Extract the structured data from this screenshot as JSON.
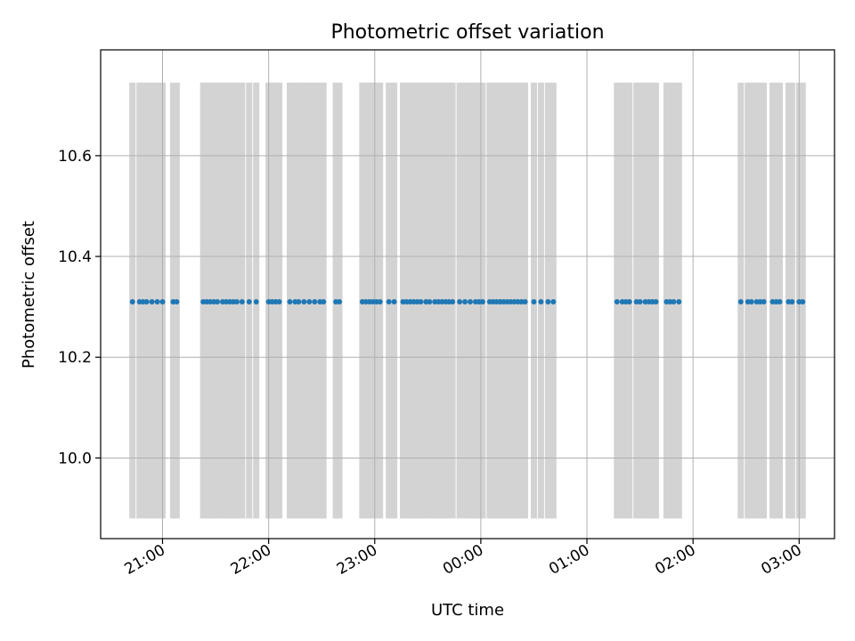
{
  "chart_data": {
    "type": "scatter",
    "title": "Photometric offset variation",
    "xlabel": "UTC time",
    "ylabel": "Photometric offset",
    "xaxis_kind": "time",
    "x_ticks": [
      "21:00",
      "22:00",
      "23:00",
      "00:00",
      "01:00",
      "02:00",
      "03:00"
    ],
    "x_tick_values": [
      "20:00+60",
      "21:00+60",
      "22:00+60",
      "23:00+60",
      "24:00+60",
      "25:00+60",
      "26:00+60"
    ],
    "x_tick_minutes": [
      1260,
      1320,
      1380,
      1440,
      1500,
      1560,
      1620
    ],
    "y_ticks": [
      "10.0",
      "10.2",
      "10.4",
      "10.6"
    ],
    "xlim_minutes": [
      1225,
      1640
    ],
    "ylim": [
      9.84,
      10.81
    ],
    "grid": true,
    "colors": {
      "points": "#1f77b4",
      "bands": "#d3d3d3",
      "grid": "#b0b0b0",
      "frame": "#000000"
    },
    "band_range": [
      9.88,
      10.745
    ],
    "point_value": 10.31,
    "x_minutes": [
      1243,
      1247,
      1249,
      1251,
      1254,
      1257,
      1260,
      1266,
      1268,
      1283,
      1285,
      1287,
      1289,
      1291,
      1294,
      1296,
      1298,
      1300,
      1302,
      1305,
      1309,
      1313,
      1320,
      1322,
      1324,
      1326,
      1332,
      1335,
      1337,
      1340,
      1343,
      1346,
      1349,
      1351,
      1358,
      1360,
      1373,
      1375,
      1377,
      1379,
      1381,
      1383,
      1388,
      1391,
      1396,
      1398,
      1400,
      1402,
      1404,
      1406,
      1409,
      1411,
      1414,
      1416,
      1418,
      1420,
      1422,
      1424,
      1428,
      1431,
      1434,
      1437,
      1439,
      1441,
      1445,
      1447,
      1449,
      1451,
      1453,
      1455,
      1457,
      1459,
      1461,
      1463,
      1465,
      1470,
      1474,
      1478,
      1481,
      1517,
      1520,
      1522,
      1524,
      1528,
      1530,
      1533,
      1535,
      1537,
      1539,
      1545,
      1547,
      1549,
      1552,
      1587,
      1591,
      1593,
      1596,
      1598,
      1600,
      1605,
      1607,
      1609,
      1614,
      1616,
      1620,
      1622
    ]
  }
}
